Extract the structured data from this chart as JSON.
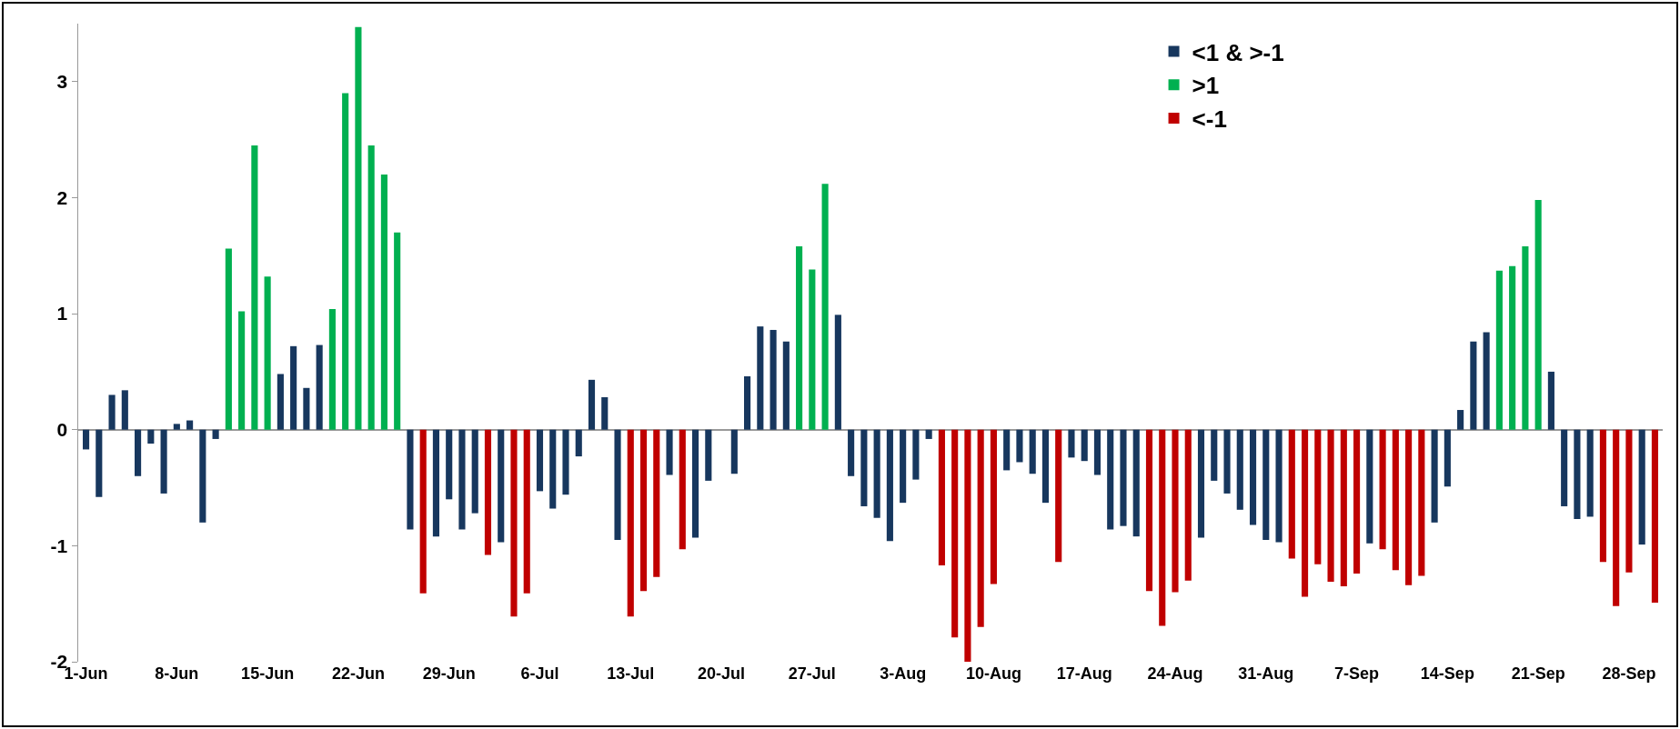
{
  "chart_data": {
    "type": "bar",
    "categories": [
      "1-Jun",
      null,
      null,
      null,
      null,
      null,
      null,
      "8-Jun",
      null,
      null,
      null,
      null,
      null,
      null,
      "15-Jun",
      null,
      null,
      null,
      null,
      null,
      null,
      "22-Jun",
      null,
      null,
      null,
      null,
      null,
      null,
      "29-Jun",
      null,
      null,
      null,
      null,
      null,
      null,
      "6-Jul",
      null,
      null,
      null,
      null,
      null,
      null,
      "13-Jul",
      null,
      null,
      null,
      null,
      null,
      null,
      "20-Jul",
      null,
      null,
      null,
      null,
      null,
      null,
      "27-Jul",
      null,
      null,
      null,
      null,
      null,
      null,
      "3-Aug",
      null,
      null,
      null,
      null,
      null,
      null,
      "10-Aug",
      null,
      null,
      null,
      null,
      null,
      null,
      "17-Aug",
      null,
      null,
      null,
      null,
      null,
      null,
      "24-Aug",
      null,
      null,
      null,
      null,
      null,
      null,
      "31-Aug",
      null,
      null,
      null,
      null,
      null,
      null,
      "7-Sep",
      null,
      null,
      null,
      null,
      null,
      null,
      "14-Sep",
      null,
      null,
      null,
      null,
      null,
      null,
      "21-Sep",
      null,
      null,
      null,
      null,
      null,
      null,
      "28-Sep",
      null,
      null
    ],
    "series": [
      {
        "name": "<1 & >-1",
        "color": "#17375e",
        "values": [
          -0.17,
          -0.58,
          0.3,
          0.34,
          -0.4,
          -0.12,
          -0.55,
          0.05,
          0.08,
          -0.8,
          -0.08,
          null,
          null,
          null,
          null,
          0.48,
          0.72,
          0.36,
          0.73,
          null,
          null,
          null,
          null,
          null,
          null,
          -0.86,
          null,
          -0.92,
          -0.6,
          -0.86,
          -0.72,
          null,
          -0.97,
          null,
          null,
          -0.53,
          -0.68,
          -0.56,
          -0.23,
          0.43,
          0.28,
          -0.95,
          null,
          null,
          null,
          -0.39,
          null,
          -0.93,
          -0.44,
          0,
          -0.38,
          0.46,
          0.89,
          0.86,
          0.76,
          null,
          null,
          null,
          0.99,
          -0.4,
          -0.66,
          -0.76,
          -0.96,
          -0.63,
          -0.43,
          -0.08,
          null,
          null,
          null,
          null,
          null,
          -0.35,
          -0.28,
          -0.38,
          -0.63,
          null,
          -0.24,
          -0.27,
          -0.39,
          -0.86,
          -0.83,
          -0.92,
          null,
          null,
          null,
          null,
          -0.93,
          -0.44,
          -0.55,
          -0.69,
          -0.82,
          -0.95,
          -0.97,
          null,
          null,
          null,
          null,
          null,
          null,
          -0.98,
          null,
          null,
          null,
          null,
          -0.8,
          -0.49,
          0.17,
          0.76,
          0.84,
          null,
          null,
          null,
          null,
          0.5,
          -0.66,
          -0.77,
          -0.75,
          null,
          null,
          null,
          -0.99,
          null
        ]
      },
      {
        "name": ">1",
        "color": "#00b050",
        "values": [
          null,
          null,
          null,
          null,
          null,
          null,
          null,
          null,
          null,
          null,
          null,
          1.56,
          1.02,
          2.45,
          1.32,
          null,
          null,
          null,
          null,
          1.04,
          2.9,
          3.47,
          2.45,
          2.2,
          1.7,
          null,
          null,
          null,
          null,
          null,
          null,
          null,
          null,
          null,
          null,
          null,
          null,
          null,
          null,
          null,
          null,
          null,
          null,
          null,
          null,
          null,
          null,
          null,
          null,
          null,
          null,
          null,
          null,
          null,
          null,
          1.58,
          1.38,
          2.12,
          null,
          null,
          null,
          null,
          null,
          null,
          null,
          null,
          null,
          null,
          null,
          null,
          null,
          null,
          null,
          null,
          null,
          null,
          null,
          null,
          null,
          null,
          null,
          null,
          null,
          null,
          null,
          null,
          null,
          null,
          null,
          null,
          null,
          null,
          null,
          null,
          null,
          null,
          null,
          null,
          null,
          null,
          null,
          null,
          null,
          null,
          null,
          null,
          null,
          null,
          null,
          1.37,
          1.41,
          1.58,
          1.98,
          null,
          null,
          null,
          null,
          null,
          null,
          null,
          null,
          null
        ]
      },
      {
        "name": "<-1",
        "color": "#c00000",
        "values": [
          null,
          null,
          null,
          null,
          null,
          null,
          null,
          null,
          null,
          null,
          null,
          null,
          null,
          null,
          null,
          null,
          null,
          null,
          null,
          null,
          null,
          null,
          null,
          null,
          null,
          null,
          -1.41,
          null,
          null,
          null,
          null,
          -1.08,
          null,
          -1.61,
          -1.41,
          null,
          null,
          null,
          null,
          null,
          null,
          null,
          -1.61,
          -1.39,
          -1.27,
          null,
          -1.03,
          null,
          null,
          null,
          null,
          null,
          null,
          null,
          null,
          null,
          null,
          null,
          null,
          null,
          null,
          null,
          null,
          null,
          null,
          null,
          -1.17,
          -1.79,
          -2.0,
          -1.7,
          -1.33,
          null,
          null,
          null,
          null,
          -1.14,
          null,
          null,
          null,
          null,
          null,
          null,
          -1.39,
          -1.69,
          -1.4,
          -1.3,
          null,
          null,
          null,
          null,
          null,
          null,
          null,
          -1.11,
          -1.44,
          -1.16,
          -1.31,
          -1.35,
          -1.24,
          null,
          -1.03,
          -1.21,
          -1.34,
          -1.26,
          null,
          null,
          null,
          null,
          null,
          null,
          null,
          null,
          null,
          null,
          null,
          null,
          null,
          -1.14,
          -1.52,
          -1.23,
          null,
          -1.49
        ]
      }
    ],
    "ylim": [
      -2,
      3.5
    ],
    "yticks": [
      -2,
      -1,
      0,
      1,
      2,
      3
    ],
    "legend": "top right"
  }
}
